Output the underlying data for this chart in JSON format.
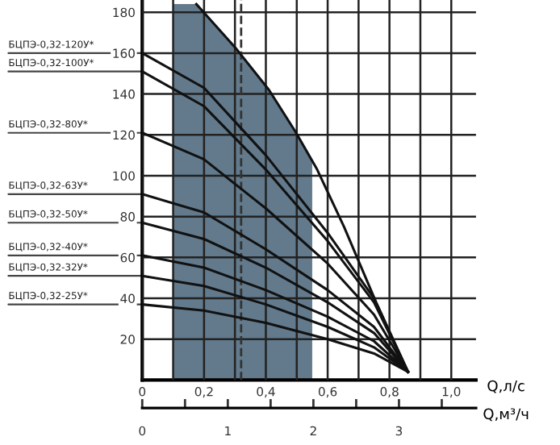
{
  "chart_data": {
    "type": "line",
    "xlabel": "Q,л/с",
    "x2label": "Q,м³/ч",
    "xlim": [
      0,
      1.08
    ],
    "xticks": [
      0,
      {
        "value": 0.1,
        "label": null
      },
      {
        "value": 0.2,
        "label": "0,2"
      },
      {
        "value": 0.3,
        "label": null
      },
      {
        "value": 0.4,
        "label": "0,4"
      },
      {
        "value": 0.5,
        "label": null
      },
      {
        "value": 0.6,
        "label": "0,6"
      },
      {
        "value": 0.7,
        "label": null
      },
      {
        "value": 0.8,
        "label": "0,8"
      },
      {
        "value": 0.9,
        "label": null
      },
      {
        "value": 1.0,
        "label": "1,0"
      }
    ],
    "x2lim": [
      0,
      3.9
    ],
    "x2ticks": [
      0,
      {
        "value": 0.5,
        "label": null
      },
      1,
      {
        "value": 1.5,
        "label": null
      },
      2,
      {
        "value": 2.5,
        "label": null
      },
      3,
      {
        "value": 3.5,
        "label": null
      }
    ],
    "ylim": [
      0,
      186
    ],
    "yticks": [
      20,
      40,
      60,
      80,
      100,
      120,
      140,
      160,
      180
    ],
    "grid": true,
    "marker": "none",
    "line_style": "solid",
    "ref_lines": [
      {
        "axis": "x",
        "value": 0.32,
        "line_style": "dashed",
        "color": "#333333"
      }
    ],
    "series": [
      {
        "type": "area",
        "color": "#627a8c",
        "x": [
          0.1,
          0.175,
          0.305,
          0.41,
          0.496,
          0.55
        ],
        "values": [
          184,
          184,
          162,
          142,
          121.5,
          107
        ]
      },
      {
        "color": "#111111",
        "x": [
          0.175,
          0.305,
          0.41,
          0.496,
          0.566,
          0.653,
          0.757,
          0.86
        ],
        "values": [
          184,
          162,
          142,
          121.5,
          103,
          75,
          38,
          4
        ]
      },
      {
        "name": "БЦПЭ-0,32-120У*",
        "color": "#111111",
        "x": [
          0,
          0.2,
          0.4,
          0.6,
          0.75,
          0.86
        ],
        "values": [
          160,
          143,
          110,
          72,
          40,
          4
        ]
      },
      {
        "name": "БЦПЭ-0,32-100У*",
        "color": "#111111",
        "x": [
          0,
          0.2,
          0.4,
          0.6,
          0.75,
          0.86
        ],
        "values": [
          151,
          134,
          103,
          68,
          38,
          4
        ]
      },
      {
        "name": "БЦПЭ-0,32-80У*",
        "color": "#111111",
        "x": [
          0,
          0.2,
          0.4,
          0.6,
          0.75,
          0.86
        ],
        "values": [
          121,
          108,
          84,
          57,
          32,
          4
        ]
      },
      {
        "name": "БЦПЭ-0,32-63У*",
        "color": "#111111",
        "x": [
          0,
          0.2,
          0.4,
          0.6,
          0.75,
          0.86
        ],
        "values": [
          91,
          82,
          64,
          44,
          26,
          4
        ]
      },
      {
        "name": "БЦПЭ-0,32-50У*",
        "color": "#111111",
        "x": [
          0,
          0.2,
          0.4,
          0.6,
          0.75,
          0.86
        ],
        "values": [
          77,
          69,
          55,
          38,
          23,
          4
        ]
      },
      {
        "name": "БЦПЭ-0,32-40У*",
        "color": "#111111",
        "x": [
          0,
          0.2,
          0.4,
          0.6,
          0.75,
          0.86
        ],
        "values": [
          61,
          55,
          44,
          31,
          19,
          4
        ]
      },
      {
        "name": "БЦПЭ-0,32-32У*",
        "color": "#111111",
        "x": [
          0,
          0.2,
          0.4,
          0.6,
          0.75,
          0.86
        ],
        "values": [
          51,
          46,
          37,
          26,
          16,
          4
        ]
      },
      {
        "name": "БЦПЭ-0,32-25У*",
        "color": "#111111",
        "x": [
          0,
          0.2,
          0.4,
          0.6,
          0.75,
          0.86
        ],
        "values": [
          37,
          34,
          28,
          20,
          13,
          4
        ]
      }
    ]
  }
}
